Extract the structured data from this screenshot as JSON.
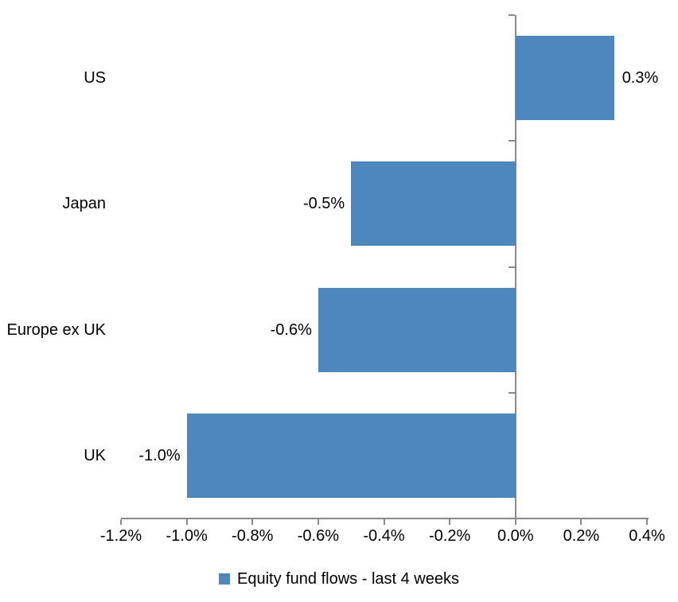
{
  "chart_data": {
    "type": "bar",
    "orientation": "horizontal",
    "categories": [
      "US",
      "Japan",
      "Europe ex UK",
      "UK"
    ],
    "values": [
      0.3,
      -0.5,
      -0.6,
      -1.0
    ],
    "data_labels": [
      "0.3%",
      "-0.5%",
      "-0.6%",
      "-1.0%"
    ],
    "xlim": [
      -1.2,
      0.4
    ],
    "xticks": [
      -1.2,
      -1.0,
      -0.8,
      -0.6,
      -0.4,
      -0.2,
      0,
      0.2,
      0.4
    ],
    "xtick_labels": [
      "-1.2%",
      "-1.0%",
      "-0.8%",
      "-0.6%",
      "-0.4%",
      "-0.2%",
      "0.0%",
      "0.2%",
      "0.4%"
    ],
    "grid": false,
    "legend_position": "bottom",
    "legend": [
      {
        "label": "Equity fund flows - last 4 weeks",
        "color": "#4e86be"
      }
    ],
    "bar_color": "#4e86be",
    "axis_color": "#8a8a8a",
    "text_color": "#000000",
    "background_color": "#ffffff"
  }
}
